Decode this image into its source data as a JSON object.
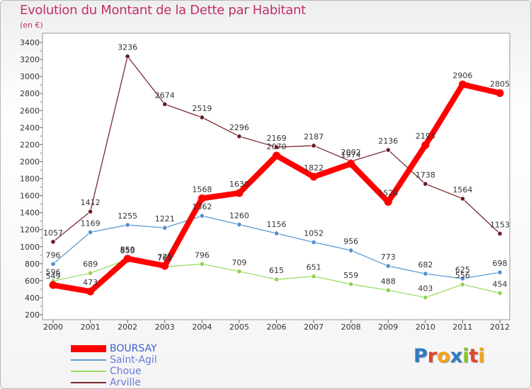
{
  "title": "Evolution du Montant de la Dette par Habitant",
  "subtitle": "(en €)",
  "logo": {
    "text": "Proxiti",
    "letters": [
      {
        "ch": "P",
        "color": "#2f79c4"
      },
      {
        "ch": "r",
        "color": "#e2452a"
      },
      {
        "ch": "o",
        "color": "#f3a21a"
      },
      {
        "ch": "x",
        "color": "#2f79c4"
      },
      {
        "ch": "i",
        "color": "#87c233"
      },
      {
        "ch": "t",
        "color": "#e2452a"
      },
      {
        "ch": "i",
        "color": "#f3a21a"
      }
    ]
  },
  "chart_data": {
    "type": "line",
    "title": "Evolution du Montant de la Dette par Habitant",
    "ylabel": "(en €)",
    "xlabel": "",
    "x": [
      "2000",
      "2001",
      "2002",
      "2003",
      "2004",
      "2005",
      "2006",
      "2007",
      "2008",
      "2009",
      "2010",
      "2011",
      "2012"
    ],
    "ylim": [
      200,
      3400
    ],
    "yticks": [
      200,
      400,
      600,
      800,
      1000,
      1200,
      1400,
      1600,
      1800,
      2000,
      2200,
      2400,
      2600,
      2800,
      3000,
      3200,
      3400
    ],
    "grid": false,
    "legend_position": "bottom-left",
    "series": [
      {
        "name": "BOURSAY",
        "color": "#ff0000",
        "marker_color": "#ff0000",
        "values": [
          549,
          473,
          859,
          775,
          1568,
          1630,
          2070,
          1822,
          1974,
          1526,
          2193,
          2906,
          2805
        ]
      },
      {
        "name": "Saint-Agil",
        "color": "#5b9bd5",
        "marker_color": "#4f8fd0",
        "values": [
          796,
          1169,
          1255,
          1221,
          1362,
          1260,
          1156,
          1052,
          956,
          773,
          682,
          625,
          698
        ]
      },
      {
        "name": "Choue",
        "color": "#99dd66",
        "marker_color": "#8fd24f",
        "values": [
          596,
          689,
          850,
          763,
          796,
          709,
          615,
          651,
          559,
          488,
          403,
          556,
          454
        ]
      },
      {
        "name": "Arville",
        "color": "#7a2a30",
        "marker_color": "#6a1c22",
        "values": [
          1057,
          1412,
          3236,
          2674,
          2519,
          2296,
          2169,
          2187,
          2002,
          2136,
          1738,
          1564,
          1153
        ]
      }
    ]
  }
}
